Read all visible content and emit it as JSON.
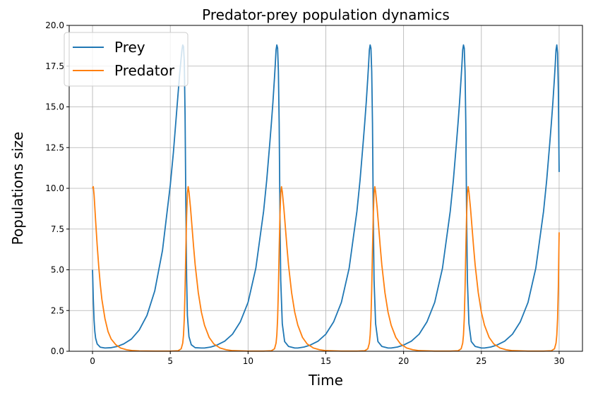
{
  "chart_data": {
    "type": "line",
    "title": "Predator-prey population dynamics",
    "xlabel": "Time",
    "ylabel": "Populations size",
    "xlim": [
      -1.5,
      31.5
    ],
    "ylim": [
      0,
      20
    ],
    "xticks": [
      "0",
      "5",
      "10",
      "15",
      "20",
      "25",
      "30"
    ],
    "xtick_values": [
      0,
      5,
      10,
      15,
      20,
      25,
      30
    ],
    "yticks": [
      "0.0",
      "2.5",
      "5.0",
      "7.5",
      "10.0",
      "12.5",
      "15.0",
      "17.5",
      "20.0"
    ],
    "ytick_values": [
      0,
      2.5,
      5,
      7.5,
      10,
      12.5,
      15,
      17.5,
      20
    ],
    "grid": true,
    "legend_position": "top-left",
    "series": [
      {
        "name": "Prey",
        "color": "#1f77b4",
        "x": [
          0,
          0.05,
          0.1,
          0.15,
          0.2,
          0.3,
          0.5,
          0.8,
          1.2,
          1.6,
          2.0,
          2.5,
          3.0,
          3.5,
          4.0,
          4.5,
          5.0,
          5.2,
          5.4,
          5.5,
          5.6,
          5.7,
          5.75,
          5.8,
          5.85,
          5.9,
          5.95,
          6.0,
          6.05,
          6.1,
          6.2,
          6.35,
          6.6,
          7.0,
          7.2,
          7.6,
          8.0,
          8.5,
          9.0,
          9.5,
          10.0,
          10.5,
          11.0,
          11.2,
          11.4,
          11.5,
          11.6,
          11.7,
          11.75,
          11.8,
          11.85,
          11.9,
          11.95,
          12.0,
          12.05,
          12.1,
          12.2,
          12.35,
          12.6,
          13.0,
          13.2,
          13.6,
          14.0,
          14.5,
          15.0,
          15.5,
          16.0,
          16.5,
          17.0,
          17.2,
          17.4,
          17.5,
          17.6,
          17.7,
          17.75,
          17.8,
          17.85,
          17.9,
          17.95,
          18.0,
          18.05,
          18.1,
          18.2,
          18.35,
          18.6,
          19.0,
          19.2,
          19.6,
          20.0,
          20.5,
          21.0,
          21.5,
          22.0,
          22.5,
          23.0,
          23.2,
          23.4,
          23.5,
          23.6,
          23.7,
          23.75,
          23.8,
          23.85,
          23.9,
          23.95,
          24.0,
          24.05,
          24.1,
          24.2,
          24.35,
          24.6,
          25.0,
          25.2,
          25.6,
          26.0,
          26.5,
          27.0,
          27.5,
          28.0,
          28.5,
          29.0,
          29.2,
          29.4,
          29.5,
          29.6,
          29.7,
          29.75,
          29.8,
          29.85,
          29.9,
          29.95,
          30.0
        ],
        "y": [
          5.0,
          3.2,
          1.9,
          1.2,
          0.8,
          0.45,
          0.25,
          0.2,
          0.22,
          0.3,
          0.45,
          0.75,
          1.3,
          2.2,
          3.7,
          6.2,
          10.2,
          12.2,
          14.6,
          15.8,
          17.0,
          18.0,
          18.5,
          18.8,
          18.7,
          17.8,
          14.5,
          9.0,
          4.5,
          2.2,
          0.9,
          0.4,
          0.22,
          0.2,
          0.2,
          0.26,
          0.38,
          0.62,
          1.05,
          1.8,
          3.0,
          5.1,
          8.6,
          10.5,
          12.8,
          14.0,
          15.3,
          16.8,
          17.6,
          18.5,
          18.8,
          18.6,
          17.2,
          14.0,
          8.5,
          4.4,
          1.7,
          0.6,
          0.3,
          0.2,
          0.2,
          0.26,
          0.38,
          0.62,
          1.05,
          1.8,
          3.0,
          5.1,
          8.6,
          10.5,
          12.8,
          14.0,
          15.3,
          16.8,
          17.6,
          18.5,
          18.8,
          18.6,
          17.2,
          14.0,
          8.5,
          4.4,
          1.7,
          0.6,
          0.3,
          0.2,
          0.2,
          0.26,
          0.38,
          0.62,
          1.05,
          1.8,
          3.0,
          5.1,
          8.6,
          10.5,
          12.8,
          14.0,
          15.3,
          16.8,
          17.6,
          18.5,
          18.8,
          18.6,
          17.2,
          14.0,
          8.5,
          4.4,
          1.7,
          0.6,
          0.3,
          0.2,
          0.2,
          0.26,
          0.38,
          0.62,
          1.05,
          1.8,
          3.0,
          5.1,
          8.6,
          10.5,
          12.8,
          14.0,
          15.3,
          16.8,
          17.6,
          18.5,
          18.8,
          18.3,
          16.0,
          11.0
        ]
      },
      {
        "name": "Predator",
        "color": "#ff7f0e",
        "x": [
          0,
          0.05,
          0.1,
          0.2,
          0.3,
          0.4,
          0.5,
          0.6,
          0.8,
          1.0,
          1.2,
          1.5,
          1.8,
          2.2,
          2.6,
          3.0,
          4.0,
          5.0,
          5.5,
          5.7,
          5.8,
          5.85,
          5.9,
          5.95,
          6.0,
          6.05,
          6.1,
          6.15,
          6.2,
          6.3,
          6.4,
          6.5,
          6.6,
          6.8,
          7.0,
          7.2,
          7.5,
          7.8,
          8.2,
          8.6,
          9.0,
          10.0,
          11.0,
          11.5,
          11.7,
          11.8,
          11.85,
          11.9,
          11.95,
          12.0,
          12.05,
          12.1,
          12.15,
          12.2,
          12.3,
          12.4,
          12.5,
          12.6,
          12.8,
          13.0,
          13.2,
          13.5,
          13.8,
          14.2,
          14.6,
          15.0,
          16.0,
          17.0,
          17.5,
          17.7,
          17.8,
          17.85,
          17.9,
          17.95,
          18.0,
          18.05,
          18.1,
          18.15,
          18.2,
          18.3,
          18.4,
          18.5,
          18.6,
          18.8,
          19.0,
          19.2,
          19.5,
          19.8,
          20.2,
          20.6,
          21.0,
          22.0,
          23.0,
          23.5,
          23.7,
          23.8,
          23.85,
          23.9,
          23.95,
          24.0,
          24.05,
          24.1,
          24.15,
          24.2,
          24.3,
          24.4,
          24.5,
          24.6,
          24.8,
          25.0,
          25.2,
          25.5,
          25.8,
          26.2,
          26.6,
          27.0,
          28.0,
          29.0,
          29.5,
          29.7,
          29.8,
          29.85,
          29.9,
          29.95,
          30.0
        ],
        "y": [
          10.0,
          10.1,
          9.6,
          8.0,
          6.5,
          5.2,
          4.1,
          3.2,
          2.0,
          1.2,
          0.75,
          0.4,
          0.2,
          0.09,
          0.04,
          0.02,
          0.01,
          0.01,
          0.03,
          0.15,
          0.5,
          1.0,
          2.0,
          3.8,
          6.2,
          8.3,
          9.7,
          10.1,
          9.8,
          8.8,
          7.6,
          6.4,
          5.3,
          3.6,
          2.4,
          1.6,
          0.85,
          0.45,
          0.2,
          0.09,
          0.04,
          0.01,
          0.01,
          0.03,
          0.15,
          0.5,
          1.0,
          2.0,
          3.8,
          6.2,
          8.3,
          9.7,
          10.1,
          9.8,
          8.8,
          7.6,
          6.4,
          5.3,
          3.6,
          2.4,
          1.6,
          0.85,
          0.45,
          0.2,
          0.09,
          0.04,
          0.01,
          0.01,
          0.03,
          0.15,
          0.5,
          1.0,
          2.0,
          3.8,
          6.2,
          8.3,
          9.7,
          10.1,
          9.8,
          8.8,
          7.6,
          6.4,
          5.3,
          3.6,
          2.4,
          1.6,
          0.85,
          0.45,
          0.2,
          0.09,
          0.04,
          0.01,
          0.01,
          0.03,
          0.15,
          0.5,
          1.0,
          2.0,
          3.8,
          6.2,
          8.3,
          9.7,
          10.1,
          9.8,
          8.8,
          7.6,
          6.4,
          5.3,
          3.6,
          2.4,
          1.6,
          0.85,
          0.45,
          0.2,
          0.09,
          0.04,
          0.01,
          0.01,
          0.03,
          0.15,
          0.5,
          1.0,
          2.0,
          4.0,
          7.3
        ]
      }
    ]
  }
}
